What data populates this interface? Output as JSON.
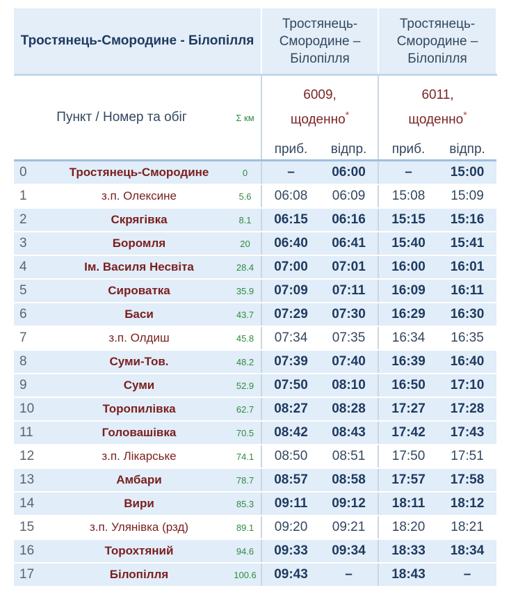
{
  "header": {
    "route_title": "Тростянець-Смородине - Білопілля",
    "col_route_1": "Тростянець-Смородине – Білопілля",
    "col_route_2": "Тростянець-Смородине – Білопілля",
    "punkt_label": "Пункт / Номер та обіг",
    "sigma_label": "Σ км",
    "train_1": "6009, щоденно",
    "train_2": "6011, щоденно",
    "asterisk": "*",
    "arr_label": "приб.",
    "dep_label": "відпр."
  },
  "rows": [
    {
      "n": "0",
      "station": "Тростянець-Смородине",
      "km": "0",
      "t1_arr": "–",
      "t1_dep": "06:00",
      "t2_arr": "–",
      "t2_dep": "15:00",
      "major": true
    },
    {
      "n": "1",
      "station": "з.п. Олексине",
      "km": "5.6",
      "t1_arr": "06:08",
      "t1_dep": "06:09",
      "t2_arr": "15:08",
      "t2_dep": "15:09",
      "major": false
    },
    {
      "n": "2",
      "station": "Скрягівка",
      "km": "8.1",
      "t1_arr": "06:15",
      "t1_dep": "06:16",
      "t2_arr": "15:15",
      "t2_dep": "15:16",
      "major": true
    },
    {
      "n": "3",
      "station": "Боромля",
      "km": "20",
      "t1_arr": "06:40",
      "t1_dep": "06:41",
      "t2_arr": "15:40",
      "t2_dep": "15:41",
      "major": true
    },
    {
      "n": "4",
      "station": "Ім. Василя Несвіта",
      "km": "28.4",
      "t1_arr": "07:00",
      "t1_dep": "07:01",
      "t2_arr": "16:00",
      "t2_dep": "16:01",
      "major": true
    },
    {
      "n": "5",
      "station": "Сироватка",
      "km": "35.9",
      "t1_arr": "07:09",
      "t1_dep": "07:11",
      "t2_arr": "16:09",
      "t2_dep": "16:11",
      "major": true
    },
    {
      "n": "6",
      "station": "Баси",
      "km": "43.7",
      "t1_arr": "07:29",
      "t1_dep": "07:30",
      "t2_arr": "16:29",
      "t2_dep": "16:30",
      "major": true
    },
    {
      "n": "7",
      "station": "з.п. Олдиш",
      "km": "45.8",
      "t1_arr": "07:34",
      "t1_dep": "07:35",
      "t2_arr": "16:34",
      "t2_dep": "16:35",
      "major": false
    },
    {
      "n": "8",
      "station": "Суми-Тов.",
      "km": "48.2",
      "t1_arr": "07:39",
      "t1_dep": "07:40",
      "t2_arr": "16:39",
      "t2_dep": "16:40",
      "major": true
    },
    {
      "n": "9",
      "station": "Суми",
      "km": "52.9",
      "t1_arr": "07:50",
      "t1_dep": "08:10",
      "t2_arr": "16:50",
      "t2_dep": "17:10",
      "major": true
    },
    {
      "n": "10",
      "station": "Торопилівка",
      "km": "62.7",
      "t1_arr": "08:27",
      "t1_dep": "08:28",
      "t2_arr": "17:27",
      "t2_dep": "17:28",
      "major": true
    },
    {
      "n": "11",
      "station": "Головашівка",
      "km": "70.5",
      "t1_arr": "08:42",
      "t1_dep": "08:43",
      "t2_arr": "17:42",
      "t2_dep": "17:43",
      "major": true
    },
    {
      "n": "12",
      "station": "з.п. Лікарське",
      "km": "74.1",
      "t1_arr": "08:50",
      "t1_dep": "08:51",
      "t2_arr": "17:50",
      "t2_dep": "17:51",
      "major": false
    },
    {
      "n": "13",
      "station": "Амбари",
      "km": "78.7",
      "t1_arr": "08:57",
      "t1_dep": "08:58",
      "t2_arr": "17:57",
      "t2_dep": "17:58",
      "major": true
    },
    {
      "n": "14",
      "station": "Вири",
      "km": "85.3",
      "t1_arr": "09:11",
      "t1_dep": "09:12",
      "t2_arr": "18:11",
      "t2_dep": "18:12",
      "major": true
    },
    {
      "n": "15",
      "station": "з.п. Улянівка (рзд)",
      "km": "89.1",
      "t1_arr": "09:20",
      "t1_dep": "09:21",
      "t2_arr": "18:20",
      "t2_dep": "18:21",
      "major": false
    },
    {
      "n": "16",
      "station": "Торохтяний",
      "km": "94.6",
      "t1_arr": "09:33",
      "t1_dep": "09:34",
      "t2_arr": "18:33",
      "t2_dep": "18:34",
      "major": true
    },
    {
      "n": "17",
      "station": "Білопілля",
      "km": "100.6",
      "t1_arr": "09:43",
      "t1_dep": "–",
      "t2_arr": "18:43",
      "t2_dep": "–",
      "major": true
    }
  ]
}
